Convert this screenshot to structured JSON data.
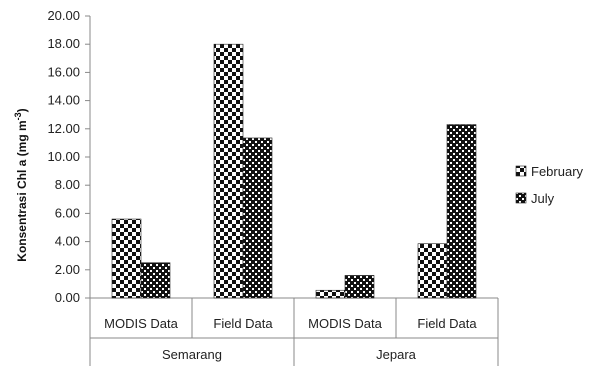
{
  "chart_data": {
    "type": "bar",
    "ylabel": "Konsentrasi Chl a (mg m",
    "ylabel_sup": "-3",
    "ylabel_close": ")",
    "ylim": [
      0,
      20
    ],
    "ytick_step": 2,
    "yticks": [
      "0.00",
      "2.00",
      "4.00",
      "6.00",
      "8.00",
      "10.00",
      "12.00",
      "14.00",
      "16.00",
      "18.00",
      "20.00"
    ],
    "categories": [
      "MODIS Data",
      "Field Data",
      "MODIS Data",
      "Field Data"
    ],
    "groups": [
      {
        "label": "Semarang",
        "span": [
          0,
          1
        ]
      },
      {
        "label": "Jepara",
        "span": [
          2,
          3
        ]
      }
    ],
    "series": [
      {
        "name": "February",
        "pattern": "checker-open",
        "values": [
          5.6,
          18.0,
          0.55,
          3.85
        ]
      },
      {
        "name": "July",
        "pattern": "checker-dense",
        "values": [
          2.5,
          11.35,
          1.6,
          12.3
        ]
      }
    ],
    "legend_position": "right",
    "grid": false
  }
}
